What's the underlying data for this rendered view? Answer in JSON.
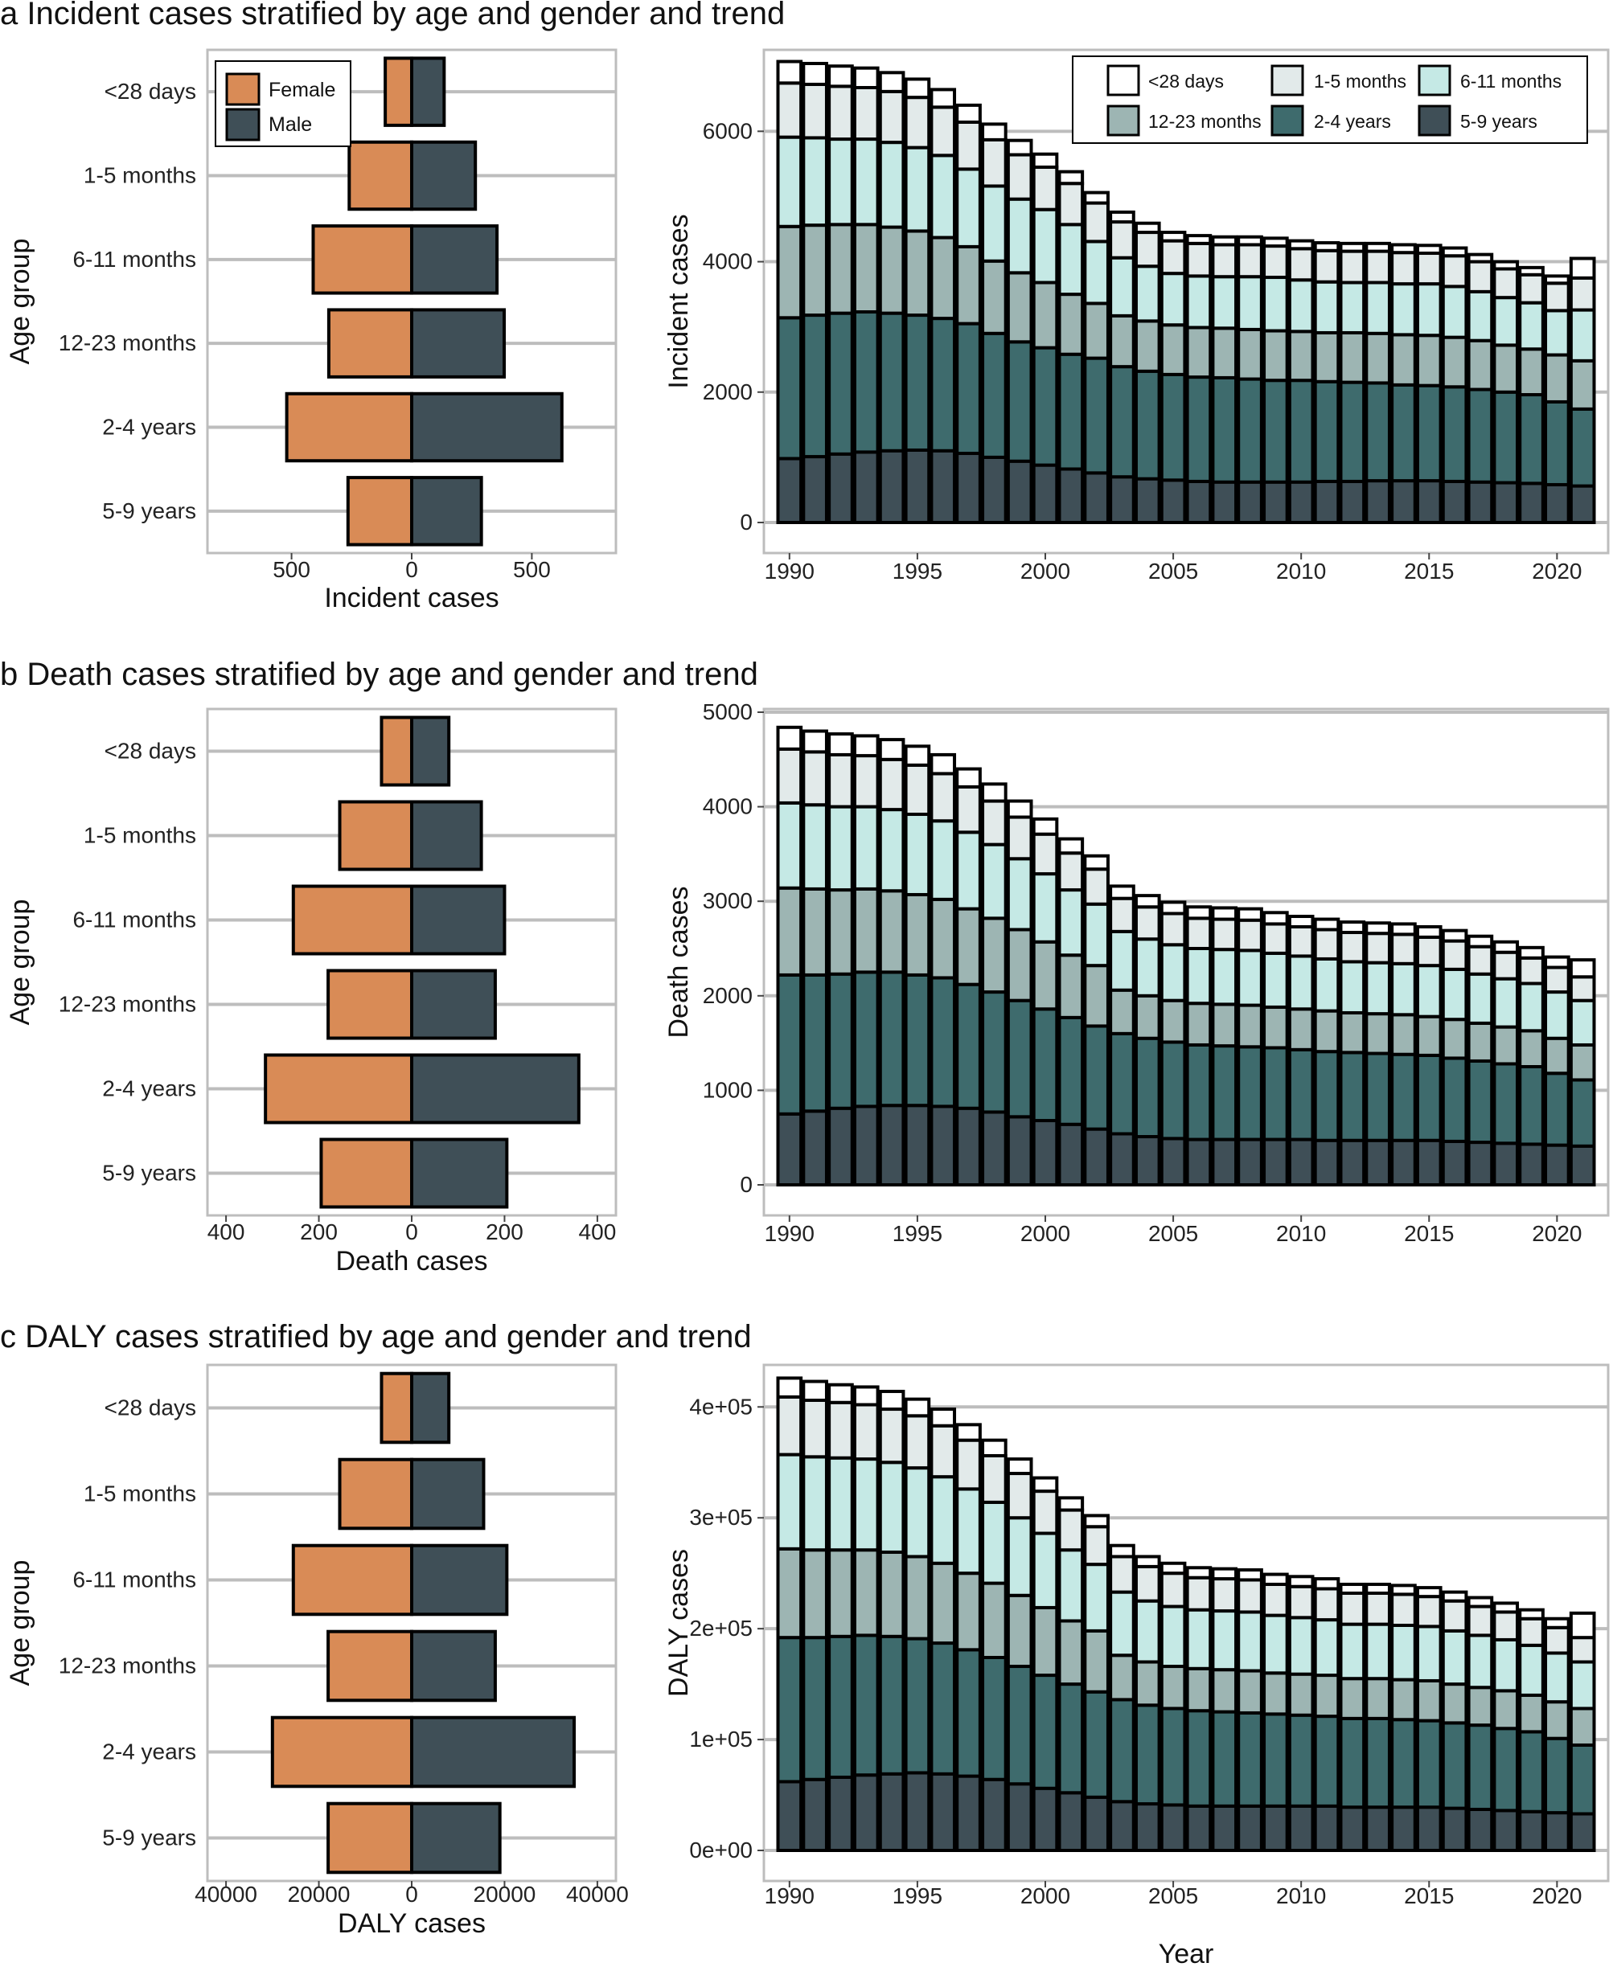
{
  "figure": {
    "age_groups": [
      "<28 days",
      "1-5 months",
      "6-11 months",
      "12-23 months",
      "2-4 years",
      "5-9 years"
    ],
    "colors": {
      "female": "#d98b56",
      "male": "#3f4f57",
      "grid": "#bdbdbd",
      "stack": [
        "#ffffff",
        "#e2eaea",
        "#c5e9e5",
        "#9db5b3",
        "#3e6b6d",
        "#3f4f57"
      ]
    },
    "pyramid_legend": [
      "Female",
      "Male"
    ],
    "stack_legend": [
      "<28 days",
      "1-5 months",
      "6-11 months",
      "12-23 months",
      "2-4 years",
      "5-9 years"
    ],
    "x_axis_title": "Year"
  },
  "chart_data": [
    {
      "id": "a-pyramid",
      "panel": "a",
      "type": "bar",
      "orientation": "horizontal-diverging",
      "title": "a  Incident cases stratified by age and gender and trend",
      "xlabel": "Incident cases",
      "ylabel": "Age group",
      "xlim": [
        -850,
        850
      ],
      "xticks": [
        -500,
        0,
        500
      ],
      "xtick_labels": [
        "500",
        "0",
        "500"
      ],
      "categories": [
        "<28 days",
        "1-5 months",
        "6-11 months",
        "12-23 months",
        "2-4 years",
        "5-9 years"
      ],
      "series": [
        {
          "name": "Female",
          "values": [
            110,
            260,
            410,
            345,
            520,
            265
          ]
        },
        {
          "name": "Male",
          "values": [
            135,
            265,
            355,
            385,
            625,
            290
          ]
        }
      ],
      "legend": "top-left"
    },
    {
      "id": "a-trend",
      "panel": "a",
      "type": "bar",
      "stacked": true,
      "title": "",
      "xlabel": "",
      "ylabel": "Incident cases",
      "ylim": [
        0,
        7200
      ],
      "yticks": [
        0,
        2000,
        4000,
        6000
      ],
      "ytick_labels": [
        "0",
        "2000",
        "4000",
        "6000"
      ],
      "xlim": [
        1989,
        2022
      ],
      "xticks": [
        1990,
        1995,
        2000,
        2005,
        2010,
        2015,
        2020
      ],
      "x": [
        1990,
        1991,
        1992,
        1993,
        1994,
        1995,
        1996,
        1997,
        1998,
        1999,
        2000,
        2001,
        2002,
        2003,
        2004,
        2005,
        2006,
        2007,
        2008,
        2009,
        2010,
        2011,
        2012,
        2013,
        2014,
        2015,
        2016,
        2017,
        2018,
        2019,
        2020,
        2021
      ],
      "series": [
        {
          "name": "5-9 years",
          "values": [
            980,
            1010,
            1050,
            1080,
            1100,
            1110,
            1100,
            1060,
            1000,
            940,
            880,
            820,
            760,
            700,
            670,
            650,
            630,
            620,
            620,
            620,
            620,
            630,
            630,
            640,
            640,
            640,
            630,
            620,
            610,
            600,
            580,
            560
          ]
        },
        {
          "name": "2-4 years",
          "values": [
            2160,
            2170,
            2160,
            2150,
            2110,
            2070,
            2030,
            1990,
            1900,
            1830,
            1800,
            1760,
            1760,
            1690,
            1650,
            1620,
            1600,
            1600,
            1580,
            1560,
            1560,
            1530,
            1520,
            1500,
            1470,
            1460,
            1450,
            1420,
            1390,
            1360,
            1270,
            1180
          ]
        },
        {
          "name": "12-23 months",
          "values": [
            1400,
            1380,
            1360,
            1340,
            1320,
            1290,
            1240,
            1180,
            1110,
            1060,
            1000,
            920,
            840,
            780,
            770,
            760,
            760,
            760,
            760,
            760,
            750,
            750,
            760,
            760,
            770,
            770,
            760,
            750,
            720,
            700,
            720,
            740
          ]
        },
        {
          "name": "6-11 months",
          "values": [
            1370,
            1340,
            1310,
            1310,
            1300,
            1280,
            1260,
            1190,
            1150,
            1130,
            1120,
            1070,
            950,
            890,
            840,
            790,
            790,
            790,
            810,
            820,
            790,
            780,
            770,
            780,
            780,
            790,
            780,
            750,
            730,
            710,
            680,
            780
          ]
        },
        {
          "name": "1-5 months",
          "values": [
            830,
            820,
            810,
            790,
            780,
            770,
            740,
            720,
            710,
            680,
            650,
            630,
            590,
            550,
            520,
            500,
            500,
            490,
            490,
            480,
            480,
            480,
            480,
            480,
            480,
            470,
            470,
            460,
            440,
            430,
            420,
            490
          ]
        },
        {
          "name": "<28 days",
          "values": [
            330,
            320,
            310,
            300,
            290,
            280,
            270,
            260,
            240,
            220,
            200,
            180,
            160,
            150,
            140,
            130,
            120,
            120,
            120,
            120,
            120,
            120,
            120,
            120,
            120,
            120,
            120,
            110,
            110,
            110,
            110,
            300
          ]
        }
      ],
      "legend": "top-right"
    },
    {
      "id": "b-pyramid",
      "panel": "b",
      "type": "bar",
      "orientation": "horizontal-diverging",
      "title": "b  Death cases stratified by age and gender and trend",
      "xlabel": "Death cases",
      "ylabel": "Age group",
      "xlim": [
        -440,
        440
      ],
      "xticks": [
        -400,
        -200,
        0,
        200,
        400
      ],
      "xtick_labels": [
        "400",
        "200",
        "0",
        "200",
        "400"
      ],
      "categories": [
        "<28 days",
        "1-5 months",
        "6-11 months",
        "12-23 months",
        "2-4 years",
        "5-9 years"
      ],
      "series": [
        {
          "name": "Female",
          "values": [
            65,
            155,
            255,
            180,
            315,
            195
          ]
        },
        {
          "name": "Male",
          "values": [
            80,
            150,
            200,
            180,
            360,
            205
          ]
        }
      ]
    },
    {
      "id": "b-trend",
      "panel": "b",
      "type": "bar",
      "stacked": true,
      "title": "",
      "xlabel": "",
      "ylabel": "Death cases",
      "ylim": [
        0,
        5000
      ],
      "yticks": [
        0,
        1000,
        2000,
        3000,
        4000,
        5000
      ],
      "ytick_labels": [
        "0",
        "1000",
        "2000",
        "3000",
        "4000",
        "5000"
      ],
      "xlim": [
        1989,
        2022
      ],
      "xticks": [
        1990,
        1995,
        2000,
        2005,
        2010,
        2015,
        2020
      ],
      "x": [
        1990,
        1991,
        1992,
        1993,
        1994,
        1995,
        1996,
        1997,
        1998,
        1999,
        2000,
        2001,
        2002,
        2003,
        2004,
        2005,
        2006,
        2007,
        2008,
        2009,
        2010,
        2011,
        2012,
        2013,
        2014,
        2015,
        2016,
        2017,
        2018,
        2019,
        2020,
        2021
      ],
      "series": [
        {
          "name": "5-9 years",
          "values": [
            750,
            780,
            810,
            830,
            840,
            840,
            830,
            810,
            770,
            720,
            680,
            640,
            590,
            540,
            510,
            490,
            480,
            480,
            480,
            480,
            480,
            470,
            470,
            470,
            470,
            470,
            460,
            450,
            440,
            430,
            420,
            410
          ]
        },
        {
          "name": "2-4 years",
          "values": [
            1470,
            1440,
            1420,
            1420,
            1410,
            1380,
            1360,
            1310,
            1270,
            1230,
            1180,
            1130,
            1090,
            1060,
            1040,
            1020,
            1000,
            990,
            980,
            970,
            950,
            940,
            930,
            920,
            910,
            900,
            880,
            860,
            840,
            820,
            760,
            700
          ]
        },
        {
          "name": "12-23 months",
          "values": [
            920,
            910,
            890,
            880,
            860,
            850,
            830,
            800,
            780,
            750,
            710,
            660,
            640,
            460,
            450,
            440,
            440,
            440,
            440,
            430,
            430,
            430,
            420,
            420,
            420,
            410,
            410,
            400,
            390,
            380,
            370,
            370
          ]
        },
        {
          "name": "6-11 months",
          "values": [
            900,
            890,
            880,
            870,
            860,
            850,
            830,
            810,
            780,
            750,
            720,
            690,
            650,
            620,
            600,
            590,
            580,
            580,
            580,
            570,
            560,
            550,
            540,
            540,
            540,
            540,
            530,
            520,
            510,
            500,
            490,
            470
          ]
        },
        {
          "name": "1-5 months",
          "values": [
            570,
            560,
            550,
            540,
            530,
            520,
            500,
            480,
            460,
            440,
            420,
            390,
            370,
            350,
            340,
            330,
            320,
            320,
            320,
            310,
            310,
            310,
            310,
            310,
            310,
            300,
            300,
            290,
            280,
            270,
            260,
            250
          ]
        },
        {
          "name": "<28 days",
          "values": [
            230,
            220,
            220,
            210,
            210,
            200,
            200,
            190,
            180,
            170,
            160,
            150,
            140,
            130,
            120,
            120,
            120,
            120,
            120,
            120,
            110,
            110,
            110,
            110,
            110,
            110,
            110,
            110,
            110,
            110,
            110,
            180
          ]
        }
      ]
    },
    {
      "id": "c-pyramid",
      "panel": "c",
      "type": "bar",
      "orientation": "horizontal-diverging",
      "title": "c  DALY cases stratified by age and gender and trend",
      "xlabel": "DALY cases",
      "ylabel": "Age group",
      "xlim": [
        -44000,
        44000
      ],
      "xticks": [
        -40000,
        -20000,
        0,
        20000,
        40000
      ],
      "xtick_labels": [
        "40000",
        "20000",
        "0",
        "20000",
        "40000"
      ],
      "categories": [
        "<28 days",
        "1-5 months",
        "6-11 months",
        "12-23 months",
        "2-4 years",
        "5-9 years"
      ],
      "series": [
        {
          "name": "Female",
          "values": [
            6500,
            15500,
            25500,
            18000,
            30000,
            18000
          ]
        },
        {
          "name": "Male",
          "values": [
            8000,
            15500,
            20500,
            18000,
            35000,
            19000
          ]
        }
      ]
    },
    {
      "id": "c-trend",
      "panel": "c",
      "type": "bar",
      "stacked": true,
      "title": "",
      "xlabel": "Year",
      "ylabel": "DALY cases",
      "ylim": [
        0,
        435000
      ],
      "yticks": [
        0,
        100000,
        200000,
        300000,
        400000
      ],
      "ytick_labels": [
        "0e+00",
        "1e+05",
        "2e+05",
        "3e+05",
        "4e+05"
      ],
      "xlim": [
        1989,
        2022
      ],
      "xticks": [
        1990,
        1995,
        2000,
        2005,
        2010,
        2015,
        2020
      ],
      "x": [
        1990,
        1991,
        1992,
        1993,
        1994,
        1995,
        1996,
        1997,
        1998,
        1999,
        2000,
        2001,
        2002,
        2003,
        2004,
        2005,
        2006,
        2007,
        2008,
        2009,
        2010,
        2011,
        2012,
        2013,
        2014,
        2015,
        2016,
        2017,
        2018,
        2019,
        2020,
        2021
      ],
      "series": [
        {
          "name": "5-9 years",
          "values": [
            62000,
            64000,
            66000,
            68000,
            69000,
            70000,
            69000,
            67000,
            64000,
            60000,
            56000,
            52000,
            48000,
            44000,
            42000,
            41000,
            40000,
            40000,
            40000,
            40000,
            40000,
            40000,
            39000,
            39000,
            39000,
            39000,
            38000,
            37000,
            36000,
            35000,
            34000,
            33000
          ]
        },
        {
          "name": "2-4 years",
          "values": [
            130000,
            128000,
            127000,
            126000,
            124000,
            121000,
            118000,
            114000,
            110000,
            106000,
            102000,
            98000,
            95000,
            92000,
            89000,
            87000,
            86000,
            85000,
            84000,
            83000,
            82000,
            81000,
            80000,
            80000,
            79000,
            78000,
            77000,
            76000,
            74000,
            72000,
            67000,
            62000
          ]
        },
        {
          "name": "12-23 months",
          "values": [
            80000,
            79000,
            78000,
            77000,
            76000,
            74000,
            72000,
            69000,
            67000,
            64000,
            61000,
            57000,
            55000,
            40000,
            39000,
            38000,
            38000,
            38000,
            38000,
            37000,
            37000,
            37000,
            36000,
            36000,
            36000,
            36000,
            35000,
            34000,
            34000,
            33000,
            33000,
            33000
          ]
        },
        {
          "name": "6-11 months",
          "values": [
            85000,
            84000,
            83000,
            82000,
            81000,
            80000,
            78000,
            76000,
            73000,
            70000,
            67000,
            64000,
            60000,
            57000,
            55000,
            54000,
            53000,
            53000,
            53000,
            52000,
            51000,
            50000,
            49000,
            49000,
            49000,
            49000,
            48000,
            47000,
            46000,
            45000,
            44000,
            42000
          ]
        },
        {
          "name": "1-5 months",
          "values": [
            52000,
            51000,
            50000,
            49000,
            48000,
            47000,
            46000,
            44000,
            42000,
            40000,
            38000,
            36000,
            34000,
            32000,
            31000,
            30000,
            29000,
            29000,
            29000,
            28000,
            28000,
            28000,
            28000,
            28000,
            28000,
            27000,
            27000,
            26000,
            25000,
            24000,
            23000,
            22000
          ]
        },
        {
          "name": "<28 days",
          "values": [
            17000,
            17000,
            16000,
            16000,
            16000,
            15000,
            15000,
            14000,
            14000,
            13000,
            12000,
            11000,
            10000,
            10000,
            9000,
            9000,
            9000,
            9000,
            9000,
            9000,
            9000,
            9000,
            8000,
            8000,
            8000,
            8000,
            8000,
            8000,
            8000,
            8000,
            8000,
            22000
          ]
        }
      ]
    }
  ]
}
